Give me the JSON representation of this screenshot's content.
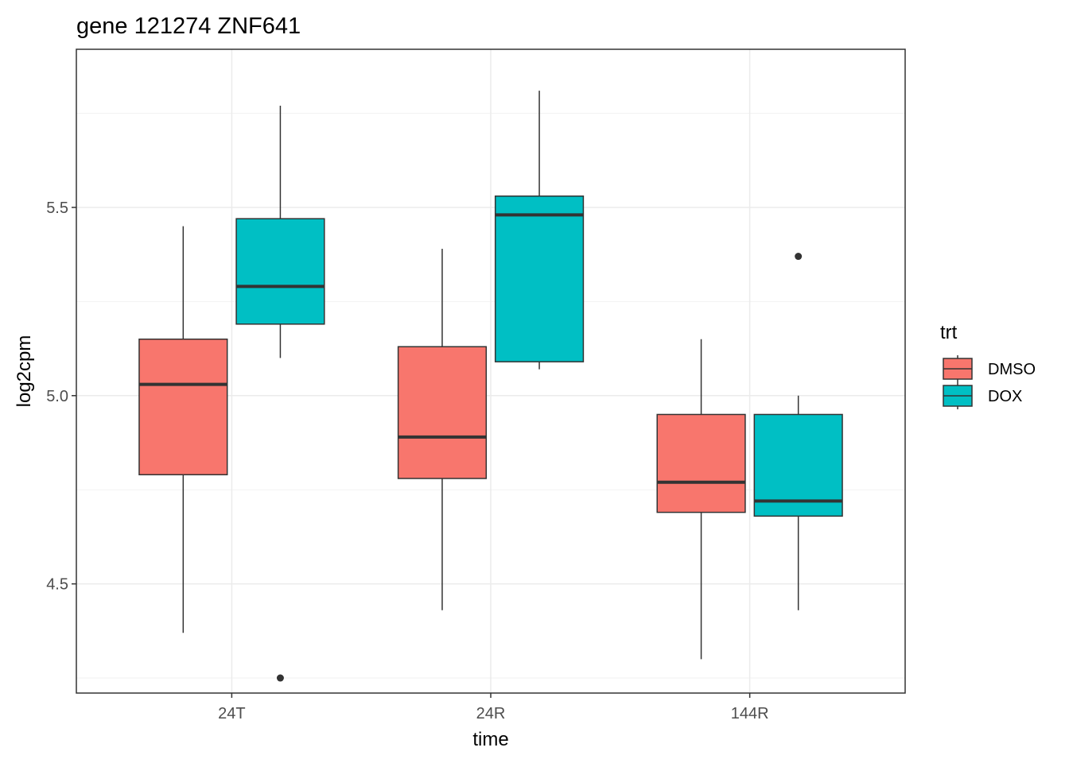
{
  "chart_data": {
    "type": "boxplot",
    "title": "gene 121274 ZNF641",
    "xlabel": "time",
    "ylabel": "log2cpm",
    "categories": [
      "24T",
      "24R",
      "144R"
    ],
    "ylim": [
      4.21,
      5.92
    ],
    "yticks": [
      4.5,
      5.0,
      5.5
    ],
    "ytick_labels": [
      "4.5",
      "5.0",
      "5.5"
    ],
    "grid": true,
    "legend": {
      "title": "trt",
      "placement": "right",
      "entries": [
        "DMSO",
        "DOX"
      ]
    },
    "series": [
      {
        "name": "DMSO",
        "color": "#F8766D",
        "boxes": [
          {
            "category": "24T",
            "whisker_low": 4.37,
            "q1": 4.79,
            "median": 5.03,
            "q3": 5.15,
            "whisker_high": 5.45,
            "outliers": []
          },
          {
            "category": "24R",
            "whisker_low": 4.43,
            "q1": 4.78,
            "median": 4.89,
            "q3": 5.13,
            "whisker_high": 5.39,
            "outliers": []
          },
          {
            "category": "144R",
            "whisker_low": 4.3,
            "q1": 4.69,
            "median": 4.77,
            "q3": 4.95,
            "whisker_high": 5.15,
            "outliers": []
          }
        ]
      },
      {
        "name": "DOX",
        "color": "#00BFC4",
        "boxes": [
          {
            "category": "24T",
            "whisker_low": 5.1,
            "q1": 5.19,
            "median": 5.29,
            "q3": 5.47,
            "whisker_high": 5.77,
            "outliers": [
              4.25
            ]
          },
          {
            "category": "24R",
            "whisker_low": 5.07,
            "q1": 5.09,
            "median": 5.48,
            "q3": 5.53,
            "whisker_high": 5.81,
            "outliers": []
          },
          {
            "category": "144R",
            "whisker_low": 4.43,
            "q1": 4.68,
            "median": 4.72,
            "q3": 4.95,
            "whisker_high": 5.0,
            "outliers": [
              5.37
            ]
          }
        ]
      }
    ]
  }
}
